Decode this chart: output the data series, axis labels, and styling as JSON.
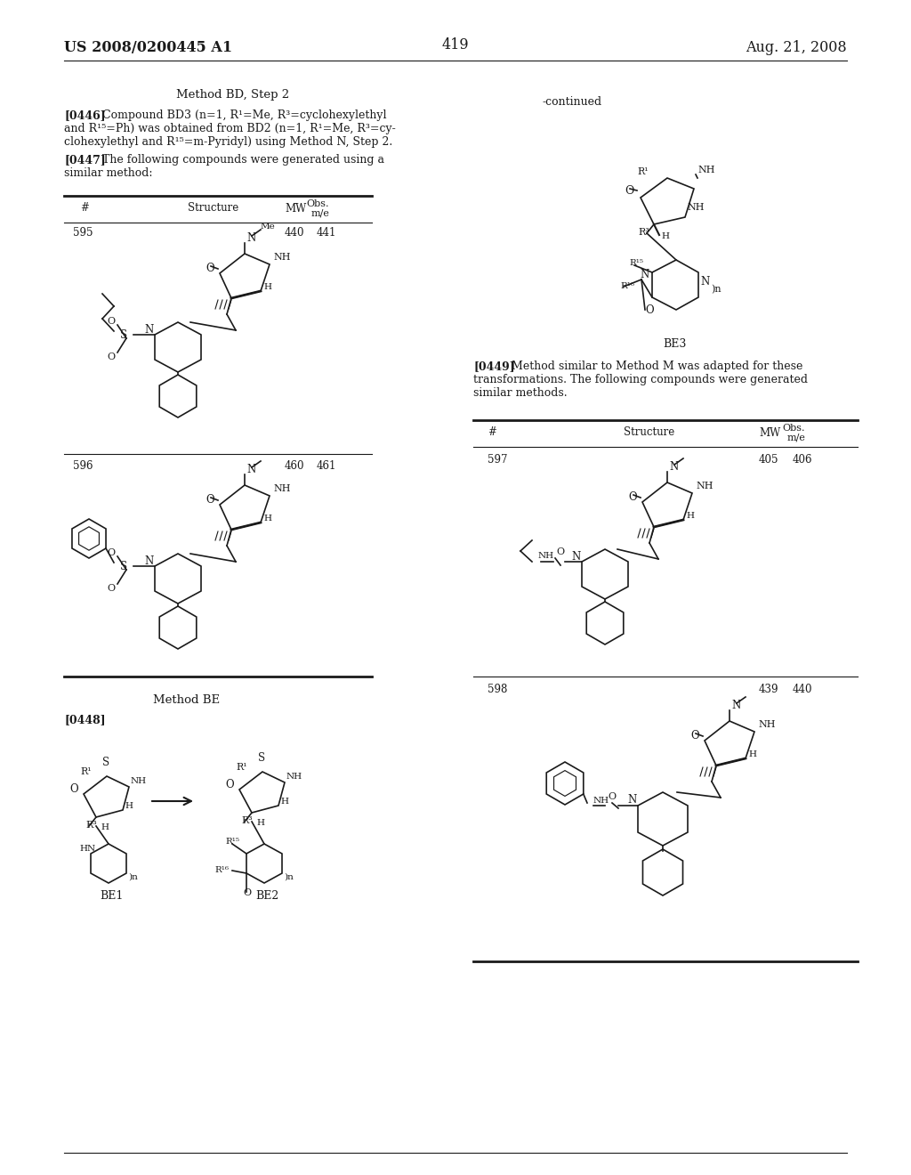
{
  "page_number": "419",
  "patent_number": "US 2008/0200445 A1",
  "date": "Aug. 21, 2008",
  "background_color": "#ffffff",
  "text_color": "#1a1a1a",
  "line_color": "#1a1a1a"
}
